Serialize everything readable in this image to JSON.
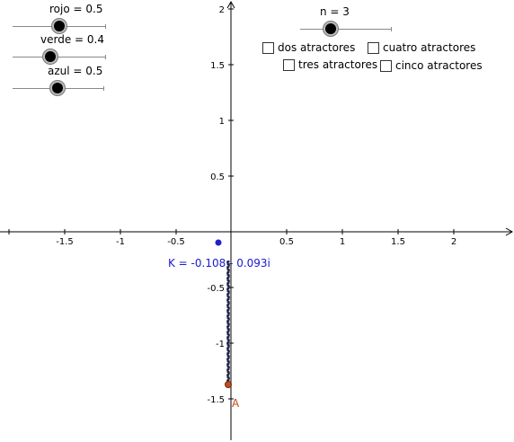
{
  "sliders": {
    "rojo": {
      "label": "rojo = 0.5",
      "value": 0.5
    },
    "verde": {
      "label": "verde = 0.4",
      "value": 0.4
    },
    "azul": {
      "label": "azul = 0.5",
      "value": 0.5
    },
    "n": {
      "label": "n = 3",
      "value": 3
    }
  },
  "checkboxes": {
    "dos": "dos atractores",
    "tres": "tres atractores",
    "cuatro": "cuatro atractores",
    "cinco": "cinco atractores"
  },
  "point_k_label": "K = -0.108 - 0.093i",
  "point_a_label": "A",
  "axes": {
    "x_ticks": [
      "-1.5",
      "-1",
      "-0.5",
      "0.5",
      "1",
      "1.5",
      "2"
    ],
    "y_ticks": [
      "2",
      "1.5",
      "1",
      "0.5",
      "-0.5",
      "-1",
      "-1.5"
    ]
  },
  "colors": {
    "point_k": "#2020c8",
    "point_a": "#c84a1a",
    "chain": "#333333"
  }
}
